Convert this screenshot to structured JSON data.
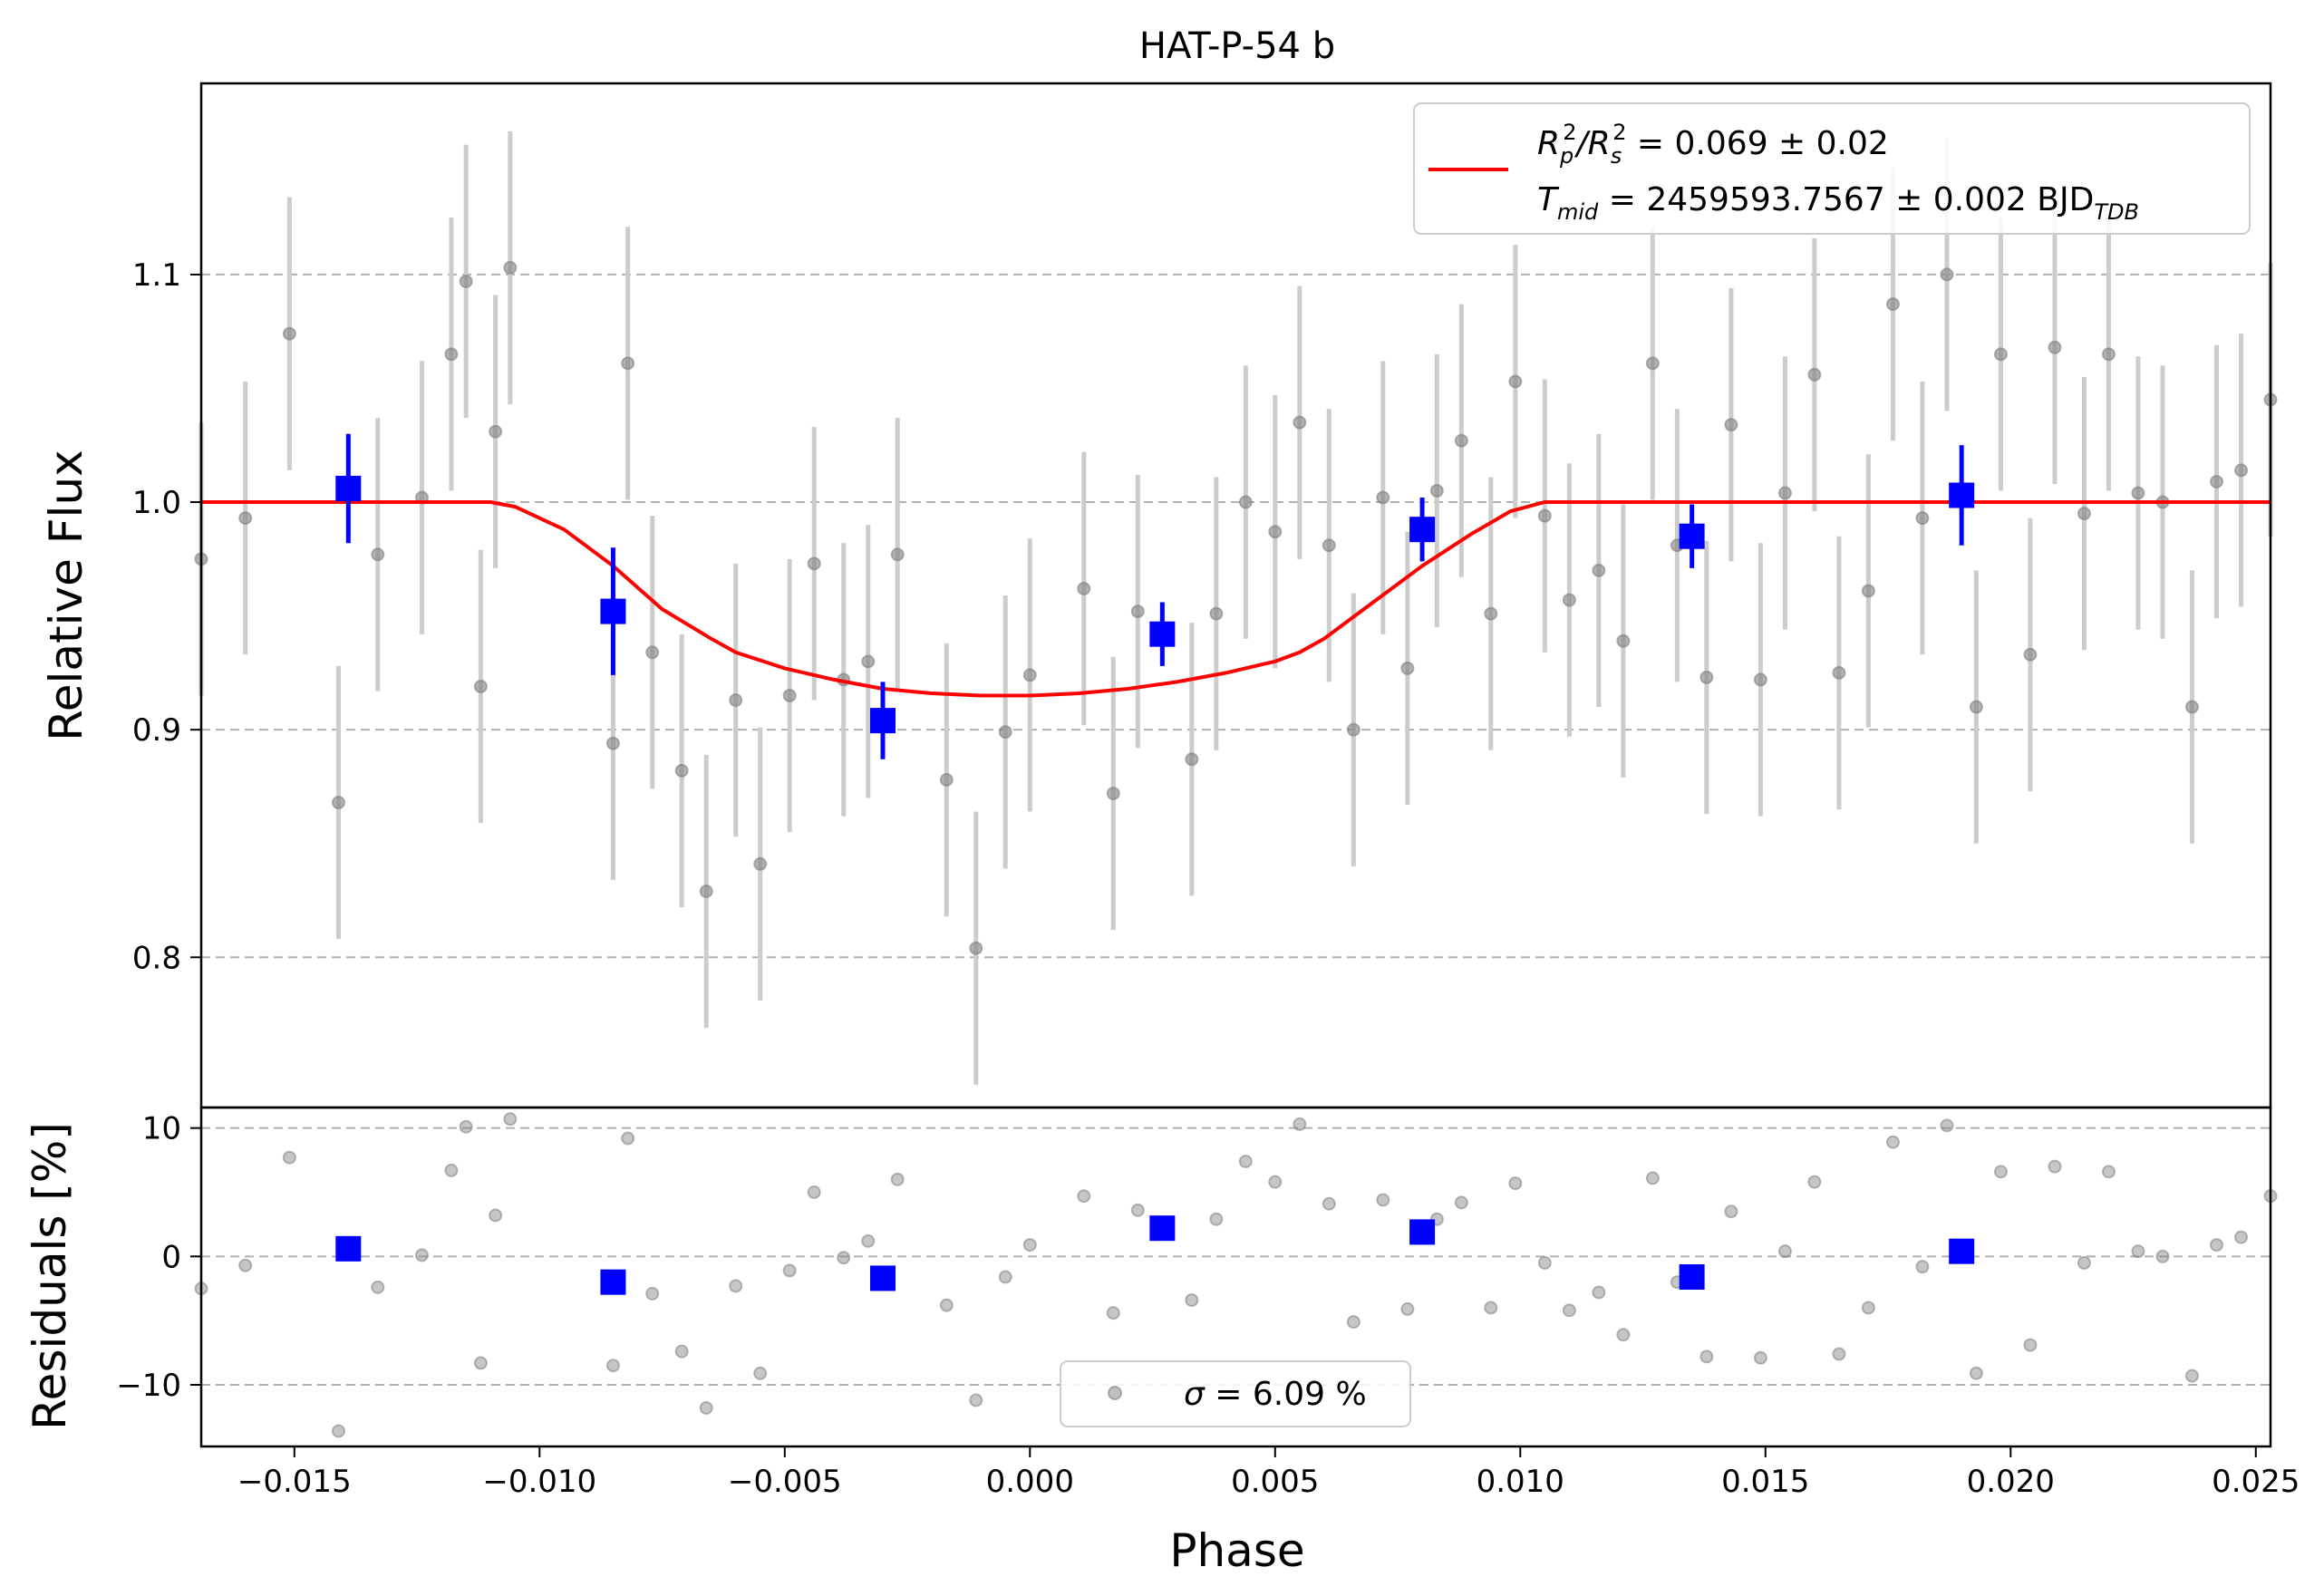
{
  "chart_data": {
    "type": "scatter",
    "title": "HAT-P-54 b",
    "xlabel": "Phase",
    "ylabel_top": "Relative Flux",
    "ylabel_bottom": "Residuals [%]",
    "xlim": [
      -0.0169,
      0.0253
    ],
    "ylim_top": [
      0.734,
      1.184
    ],
    "ylim_bottom": [
      -14.8,
      11.6
    ],
    "x_ticks": [
      "−0.015",
      "−0.010",
      "−0.005",
      "0.000",
      "0.005",
      "0.010",
      "0.015",
      "0.020",
      "0.025"
    ],
    "y_ticks_top": [
      "0.8",
      "0.9",
      "1.0",
      "1.1"
    ],
    "y_ticks_bottom": [
      "−10",
      "0",
      "10"
    ],
    "grid": "horizontal dashed",
    "legend_top": {
      "placement": "top-right",
      "line1": "R_p^2/R_s^2 = 0.069 ± 0.02",
      "line2": "T_mid = 2459593.7567 ± 0.002 BJD_TDB"
    },
    "legend_bottom": {
      "placement": "lower-center",
      "text": "σ = 6.09 %"
    },
    "colors": {
      "raw": "#808080",
      "raw_err": "#cccccc",
      "binned": "#0000ff",
      "model": "#ff0000",
      "grid": "#b0b0b0"
    },
    "model": {
      "x": [
        -0.0169,
        -0.011,
        -0.0105,
        -0.0095,
        -0.0085,
        -0.0075,
        -0.0065,
        -0.006,
        -0.005,
        -0.004,
        -0.003,
        -0.002,
        -0.001,
        0.0,
        0.001,
        0.002,
        0.003,
        0.004,
        0.005,
        0.0055,
        0.006,
        0.007,
        0.008,
        0.009,
        0.0098,
        0.0105,
        0.011,
        0.0253
      ],
      "flux": [
        1.0,
        1.0,
        0.998,
        0.988,
        0.972,
        0.953,
        0.94,
        0.934,
        0.927,
        0.922,
        0.918,
        0.916,
        0.915,
        0.915,
        0.916,
        0.918,
        0.921,
        0.925,
        0.93,
        0.934,
        0.94,
        0.956,
        0.972,
        0.986,
        0.996,
        1.0,
        1.0,
        1.0
      ]
    },
    "raw_points": [
      {
        "x": -0.0169,
        "flux": 0.975,
        "err": 0.06,
        "resid": -2.5
      },
      {
        "x": -0.016,
        "flux": 0.993,
        "err": 0.06,
        "resid": -0.7
      },
      {
        "x": -0.0151,
        "flux": 1.074,
        "err": 0.06,
        "resid": 7.7
      },
      {
        "x": -0.0141,
        "flux": 0.868,
        "err": 0.06,
        "resid": -13.6
      },
      {
        "x": -0.0133,
        "flux": 0.977,
        "err": 0.06,
        "resid": -2.4
      },
      {
        "x": -0.0124,
        "flux": 1.002,
        "err": 0.06,
        "resid": 0.1
      },
      {
        "x": -0.0118,
        "flux": 1.065,
        "err": 0.06,
        "resid": 6.7
      },
      {
        "x": -0.0115,
        "flux": 1.097,
        "err": 0.06,
        "resid": 10.1
      },
      {
        "x": -0.0112,
        "flux": 0.919,
        "err": 0.06,
        "resid": -8.3
      },
      {
        "x": -0.0109,
        "flux": 1.031,
        "err": 0.06,
        "resid": 3.2
      },
      {
        "x": -0.0106,
        "flux": 1.103,
        "err": 0.06,
        "resid": 10.7
      },
      {
        "x": -0.0085,
        "flux": 0.894,
        "err": 0.06,
        "resid": -8.5
      },
      {
        "x": -0.0082,
        "flux": 1.061,
        "err": 0.06,
        "resid": 9.2
      },
      {
        "x": -0.0077,
        "flux": 0.934,
        "err": 0.06,
        "resid": -2.9
      },
      {
        "x": -0.0071,
        "flux": 0.882,
        "err": 0.06,
        "resid": -7.4
      },
      {
        "x": -0.0066,
        "flux": 0.829,
        "err": 0.06,
        "resid": -11.8
      },
      {
        "x": -0.006,
        "flux": 0.913,
        "err": 0.06,
        "resid": -2.3
      },
      {
        "x": -0.0055,
        "flux": 0.841,
        "err": 0.06,
        "resid": -9.1
      },
      {
        "x": -0.0049,
        "flux": 0.915,
        "err": 0.06,
        "resid": -1.1
      },
      {
        "x": -0.0044,
        "flux": 0.973,
        "err": 0.06,
        "resid": 5.0
      },
      {
        "x": -0.0038,
        "flux": 0.922,
        "err": 0.06,
        "resid": -0.1
      },
      {
        "x": -0.0033,
        "flux": 0.93,
        "err": 0.06,
        "resid": 1.2
      },
      {
        "x": -0.0027,
        "flux": 0.977,
        "err": 0.06,
        "resid": 6.0
      },
      {
        "x": -0.0017,
        "flux": 0.878,
        "err": 0.06,
        "resid": -3.8
      },
      {
        "x": -0.0011,
        "flux": 0.804,
        "err": 0.06,
        "resid": -11.2
      },
      {
        "x": -0.0005,
        "flux": 0.899,
        "err": 0.06,
        "resid": -1.6
      },
      {
        "x": 0.0,
        "flux": 0.924,
        "err": 0.06,
        "resid": 0.9
      },
      {
        "x": 0.0011,
        "flux": 0.962,
        "err": 0.06,
        "resid": 4.7
      },
      {
        "x": 0.0017,
        "flux": 0.872,
        "err": 0.06,
        "resid": -4.4
      },
      {
        "x": 0.0022,
        "flux": 0.952,
        "err": 0.06,
        "resid": 3.6
      },
      {
        "x": 0.0033,
        "flux": 0.887,
        "err": 0.06,
        "resid": -3.4
      },
      {
        "x": 0.0038,
        "flux": 0.951,
        "err": 0.06,
        "resid": 2.9
      },
      {
        "x": 0.0044,
        "flux": 1.0,
        "err": 0.06,
        "resid": 7.4
      },
      {
        "x": 0.005,
        "flux": 0.987,
        "err": 0.06,
        "resid": 5.8
      },
      {
        "x": 0.0055,
        "flux": 1.035,
        "err": 0.06,
        "resid": 10.3
      },
      {
        "x": 0.0061,
        "flux": 0.981,
        "err": 0.06,
        "resid": 4.1
      },
      {
        "x": 0.0066,
        "flux": 0.9,
        "err": 0.06,
        "resid": -5.1
      },
      {
        "x": 0.0072,
        "flux": 1.002,
        "err": 0.06,
        "resid": 4.4
      },
      {
        "x": 0.0077,
        "flux": 0.927,
        "err": 0.06,
        "resid": -4.1
      },
      {
        "x": 0.0083,
        "flux": 1.005,
        "err": 0.06,
        "resid": 2.9
      },
      {
        "x": 0.0088,
        "flux": 1.027,
        "err": 0.06,
        "resid": 4.2
      },
      {
        "x": 0.0094,
        "flux": 0.951,
        "err": 0.06,
        "resid": -4.0
      },
      {
        "x": 0.0099,
        "flux": 1.053,
        "err": 0.06,
        "resid": 5.7
      },
      {
        "x": 0.0105,
        "flux": 0.994,
        "err": 0.06,
        "resid": -0.5
      },
      {
        "x": 0.011,
        "flux": 0.957,
        "err": 0.06,
        "resid": -4.2
      },
      {
        "x": 0.0116,
        "flux": 0.97,
        "err": 0.06,
        "resid": -2.8
      },
      {
        "x": 0.0121,
        "flux": 0.939,
        "err": 0.06,
        "resid": -6.1
      },
      {
        "x": 0.0127,
        "flux": 1.061,
        "err": 0.06,
        "resid": 6.1
      },
      {
        "x": 0.0132,
        "flux": 0.981,
        "err": 0.06,
        "resid": -2.0
      },
      {
        "x": 0.0138,
        "flux": 0.923,
        "err": 0.06,
        "resid": -7.8
      },
      {
        "x": 0.0143,
        "flux": 1.034,
        "err": 0.06,
        "resid": 3.5
      },
      {
        "x": 0.0149,
        "flux": 0.922,
        "err": 0.06,
        "resid": -7.9
      },
      {
        "x": 0.0154,
        "flux": 1.004,
        "err": 0.06,
        "resid": 0.4
      },
      {
        "x": 0.016,
        "flux": 1.056,
        "err": 0.06,
        "resid": 5.8
      },
      {
        "x": 0.0165,
        "flux": 0.925,
        "err": 0.06,
        "resid": -7.6
      },
      {
        "x": 0.0171,
        "flux": 0.961,
        "err": 0.06,
        "resid": -4.0
      },
      {
        "x": 0.0176,
        "flux": 1.087,
        "err": 0.06,
        "resid": 8.9
      },
      {
        "x": 0.0182,
        "flux": 0.993,
        "err": 0.06,
        "resid": -0.8
      },
      {
        "x": 0.0187,
        "flux": 1.1,
        "err": 0.06,
        "resid": 10.2
      },
      {
        "x": 0.0193,
        "flux": 0.91,
        "err": 0.06,
        "resid": -9.1
      },
      {
        "x": 0.0198,
        "flux": 1.065,
        "err": 0.06,
        "resid": 6.6
      },
      {
        "x": 0.0204,
        "flux": 0.933,
        "err": 0.06,
        "resid": -6.9
      },
      {
        "x": 0.0209,
        "flux": 1.068,
        "err": 0.06,
        "resid": 7.0
      },
      {
        "x": 0.0215,
        "flux": 0.995,
        "err": 0.06,
        "resid": -0.5
      },
      {
        "x": 0.022,
        "flux": 1.065,
        "err": 0.06,
        "resid": 6.6
      },
      {
        "x": 0.0226,
        "flux": 1.004,
        "err": 0.06,
        "resid": 0.4
      },
      {
        "x": 0.0231,
        "flux": 1.0,
        "err": 0.06,
        "resid": 0.0
      },
      {
        "x": 0.0237,
        "flux": 0.91,
        "err": 0.06,
        "resid": -9.3
      },
      {
        "x": 0.0242,
        "flux": 1.009,
        "err": 0.06,
        "resid": 0.9
      },
      {
        "x": 0.0247,
        "flux": 1.014,
        "err": 0.06,
        "resid": 1.5
      },
      {
        "x": 0.0253,
        "flux": 1.045,
        "err": 0.06,
        "resid": 4.7
      }
    ],
    "binned_points": [
      {
        "x": -0.0139,
        "flux": 1.006,
        "err": 0.024,
        "resid": 0.6
      },
      {
        "x": -0.0085,
        "flux": 0.952,
        "err": 0.028,
        "resid": -2.0
      },
      {
        "x": -0.003,
        "flux": 0.904,
        "err": 0.017,
        "resid": -1.7
      },
      {
        "x": 0.0027,
        "flux": 0.942,
        "err": 0.014,
        "resid": 2.2
      },
      {
        "x": 0.008,
        "flux": 0.988,
        "err": 0.014,
        "resid": 1.9
      },
      {
        "x": 0.0135,
        "flux": 0.985,
        "err": 0.014,
        "resid": -1.6
      },
      {
        "x": 0.019,
        "flux": 1.003,
        "err": 0.022,
        "resid": 0.4
      }
    ]
  }
}
